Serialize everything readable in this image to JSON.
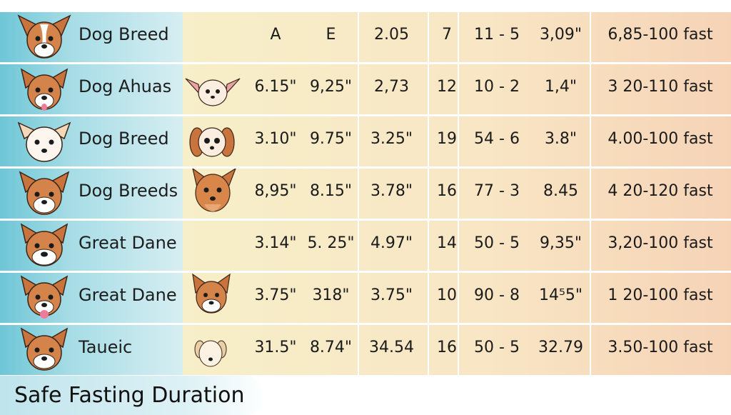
{
  "rows": [
    {
      "breed": "Dog Breed",
      "a": "A",
      "e": "E",
      "c3": "2.05",
      "c4": "7",
      "c5": "11 - 5",
      "c6": "3,09\"",
      "fast": "6,85-100 fast",
      "icon": "dog-head-icon"
    },
    {
      "breed": "Dog Ahuas",
      "a": "6.15\"",
      "e": "9,25\"",
      "c3": "2,73",
      "c4": "12",
      "c5": "10 - 2",
      "c6": "1,4\"",
      "fast": "3 20-110 fast",
      "icon": "dog-head-icon",
      "mid_icon": "chihuahua-icon"
    },
    {
      "breed": "Dog Breed",
      "a": "3.10\"",
      "e": "9.75\"",
      "c3": "3.25\"",
      "c4": "19",
      "c5": "54 - 6",
      "c6": "3.8\"",
      "fast": "4.00-100 fast",
      "icon": "dog-head-icon",
      "mid_icon": "spaniel-icon"
    },
    {
      "breed": "Dog Breeds",
      "a": "8,95\"",
      "e": "8.15\"",
      "c3": "3.78\"",
      "c4": "16",
      "c5": "77 - 3",
      "c6": "8.45",
      "fast": "4 20-120 fast",
      "icon": "dog-head-icon",
      "mid_icon": "collie-icon"
    },
    {
      "breed": "Great Dane",
      "a": "3.14\"",
      "e": "5. 25\"",
      "c3": "4.97\"",
      "c4": "14",
      "c5": "50 - 5",
      "c6": "9,35\"",
      "fast": "3,20-100 fast",
      "icon": "dog-head-icon"
    },
    {
      "breed": "Great Dane",
      "a": "3.75\"",
      "e": "318\"",
      "c3": "3.75\"",
      "c4": "10",
      "c5": "90 - 8",
      "c6": "14⁵5\"",
      "fast": "1 20-100 fast",
      "icon": "dog-head-icon",
      "mid_icon": "terrier-icon"
    },
    {
      "breed": "Taueic",
      "a": "31.5\"",
      "e": "8.74\"",
      "c3": "34.54",
      "c4": "16",
      "c5": "50 - 5",
      "c6": "32.79",
      "fast": "3.50-100 fast",
      "icon": "dog-head-icon",
      "mid_icon": "puppy-icon"
    }
  ],
  "footer": {
    "title": "Safe Fasting Duration"
  },
  "colors": {
    "breed_cell": "#6ec6d6",
    "data_cell": "#f7efc9",
    "fast_cell": "#f6d3b6",
    "dog_brown": "#c9733d"
  }
}
